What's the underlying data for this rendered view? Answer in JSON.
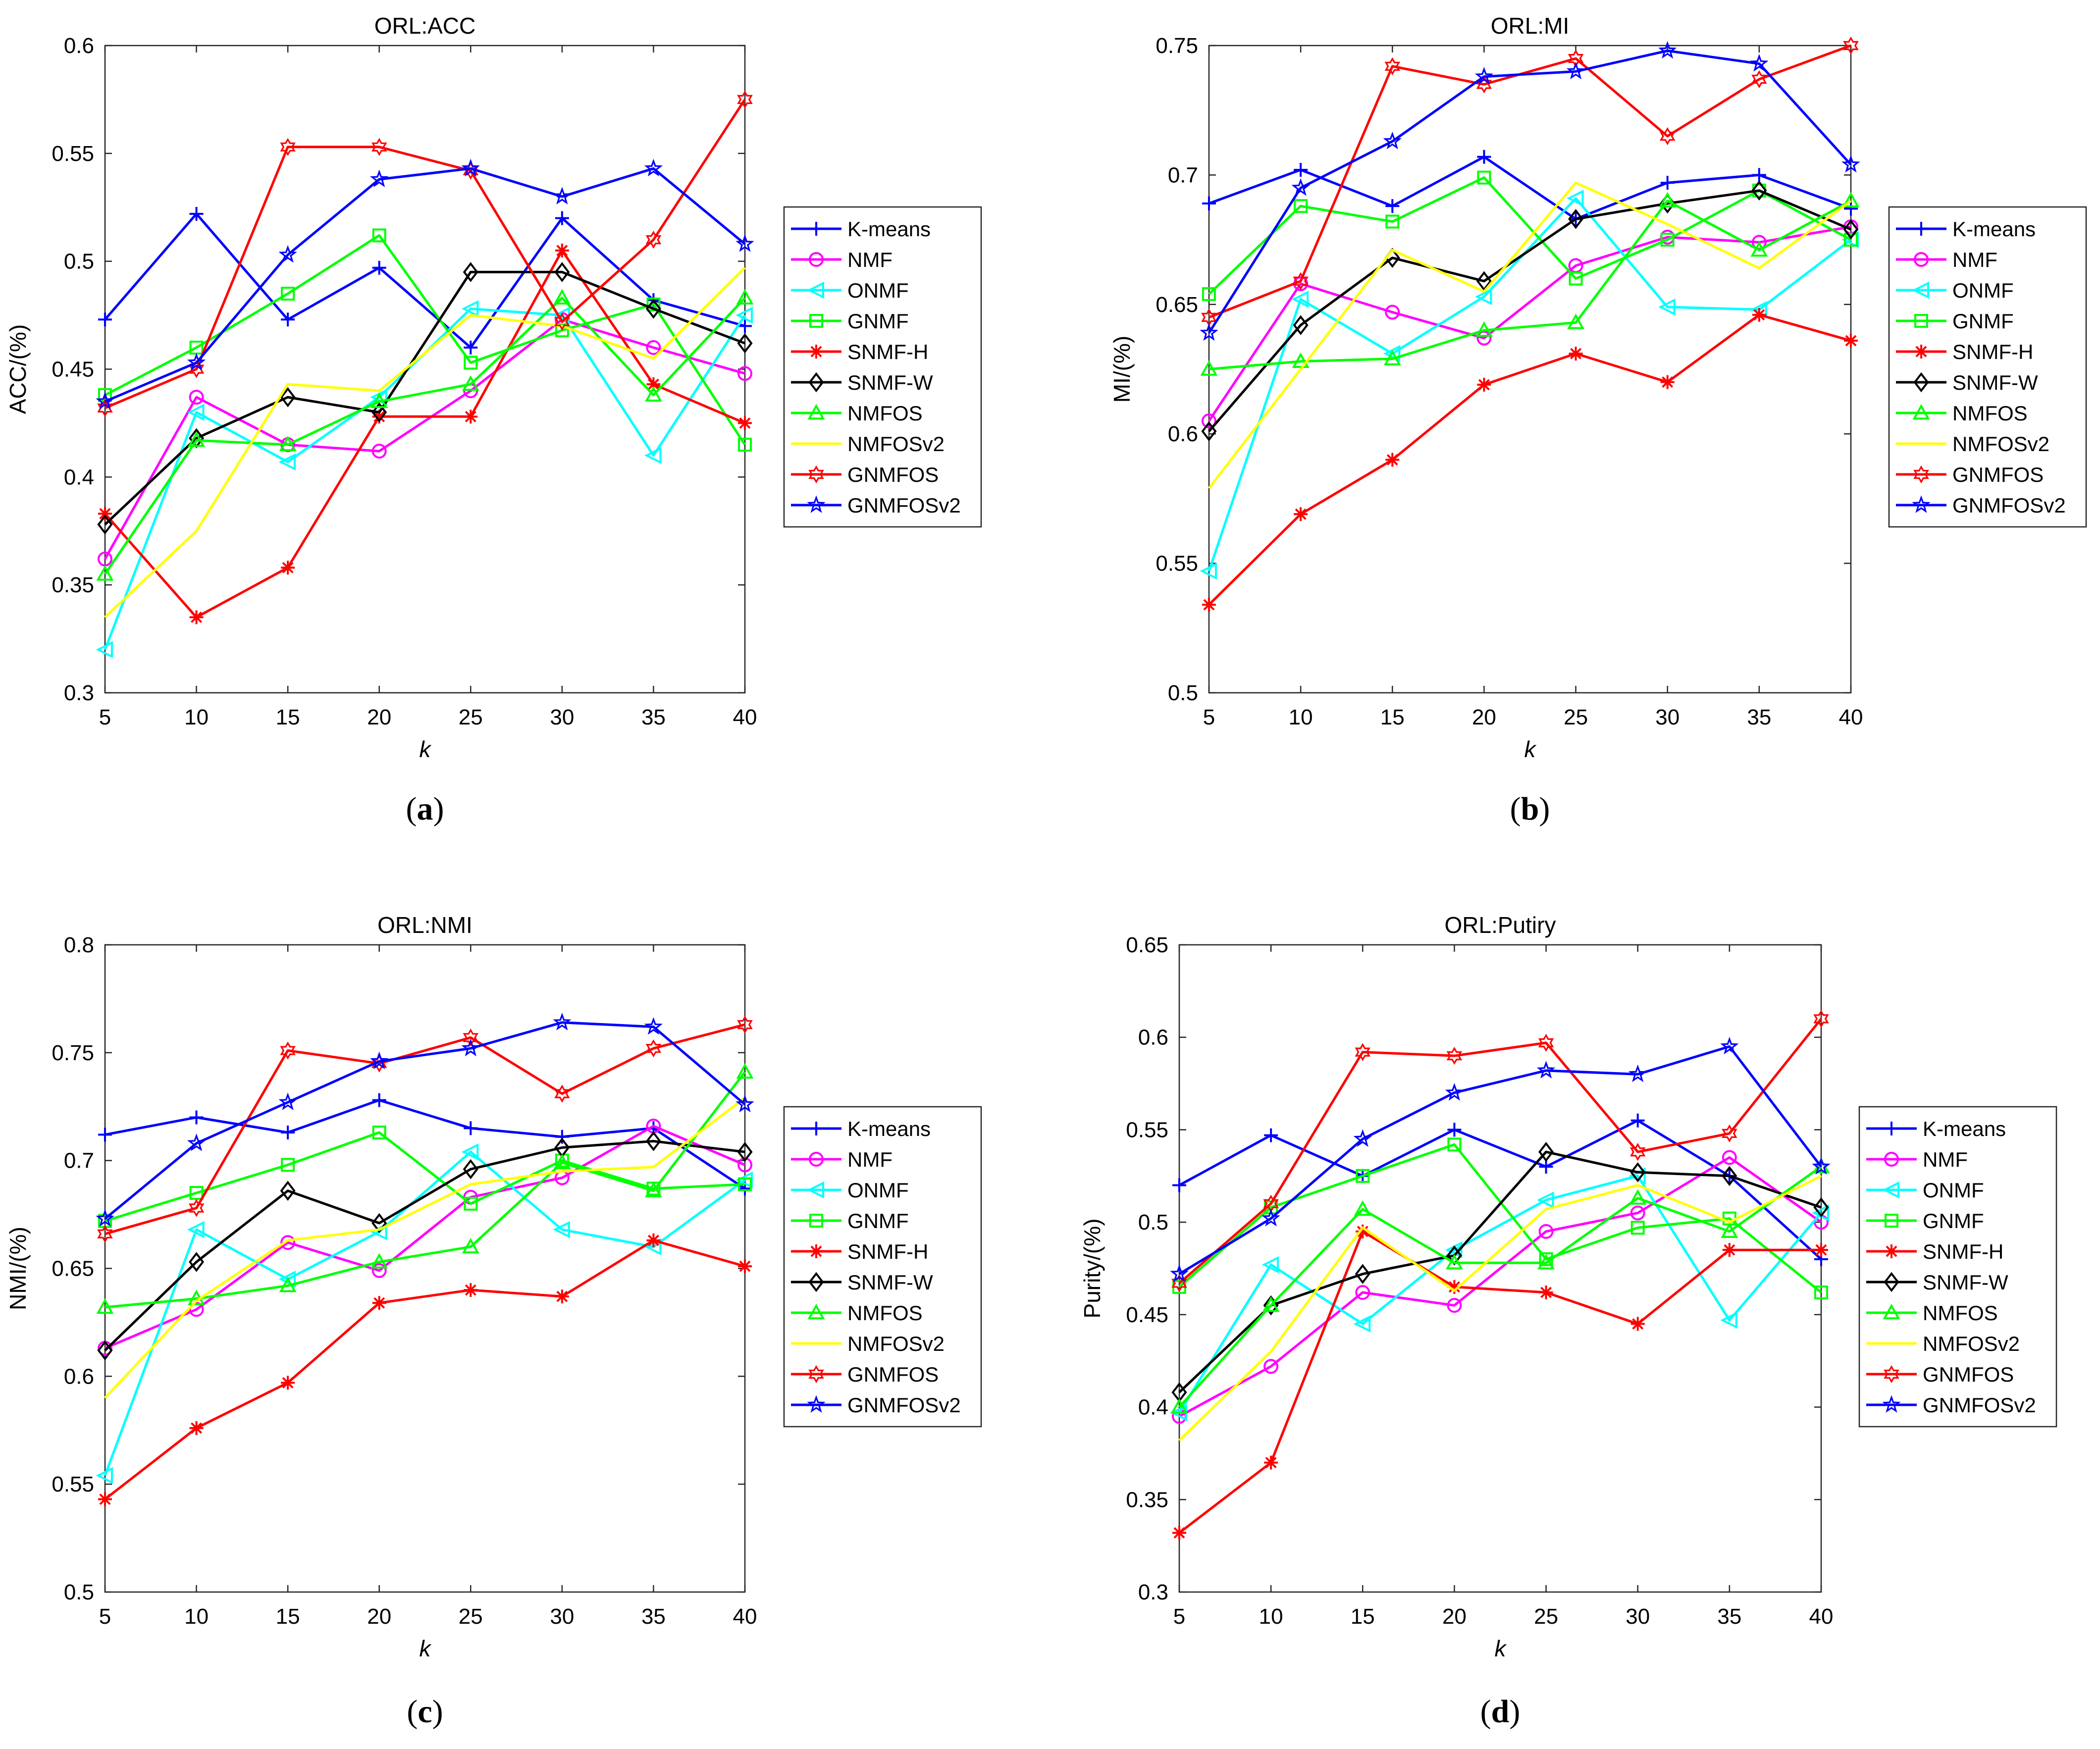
{
  "series_styles": [
    {
      "name": "K-means",
      "color": "#0000FF",
      "marker": "plus"
    },
    {
      "name": "NMF",
      "color": "#FF00FF",
      "marker": "circle"
    },
    {
      "name": "ONMF",
      "color": "#00FFFF",
      "marker": "triangle-left"
    },
    {
      "name": "GNMF",
      "color": "#00FF00",
      "marker": "square"
    },
    {
      "name": "SNMF-H",
      "color": "#FF0000",
      "marker": "asterisk"
    },
    {
      "name": "SNMF-W",
      "color": "#000000",
      "marker": "diamond"
    },
    {
      "name": "NMFOS",
      "color": "#00FF00",
      "marker": "triangle-up"
    },
    {
      "name": "NMFOSv2",
      "color": "#FFFF00",
      "marker": "none"
    },
    {
      "name": "GNMFOS",
      "color": "#FF0000",
      "marker": "hexagram"
    },
    {
      "name": "GNMFOSv2",
      "color": "#0000FF",
      "marker": "pentagram"
    }
  ],
  "chart_data": [
    {
      "type": "line",
      "panel_label": "(a)",
      "title": "ORL:ACC",
      "xlabel": "k",
      "ylabel": "ACC/(%)",
      "x": [
        5,
        10,
        15,
        20,
        25,
        30,
        35,
        40
      ],
      "xticks": [
        "5",
        "10",
        "15",
        "20",
        "25",
        "30",
        "35",
        "40"
      ],
      "ylim": [
        0.3,
        0.6
      ],
      "yticks": [
        "0.3",
        "0.35",
        "0.4",
        "0.45",
        "0.5",
        "0.55",
        "0.6"
      ],
      "legend_position": "right",
      "series": [
        {
          "name": "K-means",
          "values": [
            0.473,
            0.522,
            0.473,
            0.497,
            0.46,
            0.52,
            0.482,
            0.47
          ]
        },
        {
          "name": "NMF",
          "values": [
            0.362,
            0.437,
            0.415,
            0.412,
            0.44,
            0.473,
            0.46,
            0.448
          ]
        },
        {
          "name": "ONMF",
          "values": [
            0.32,
            0.43,
            0.407,
            0.437,
            0.478,
            0.475,
            0.41,
            0.475
          ]
        },
        {
          "name": "GNMF",
          "values": [
            0.438,
            0.46,
            0.485,
            0.512,
            0.453,
            0.468,
            0.48,
            0.415
          ]
        },
        {
          "name": "SNMF-H",
          "values": [
            0.383,
            0.335,
            0.358,
            0.428,
            0.428,
            0.505,
            0.443,
            0.425
          ]
        },
        {
          "name": "SNMF-W",
          "values": [
            0.378,
            0.418,
            0.437,
            0.43,
            0.495,
            0.495,
            0.478,
            0.462
          ]
        },
        {
          "name": "NMFOS",
          "values": [
            0.355,
            0.417,
            0.415,
            0.435,
            0.443,
            0.483,
            0.438,
            0.483
          ]
        },
        {
          "name": "NMFOSv2",
          "values": [
            0.335,
            0.375,
            0.443,
            0.44,
            0.475,
            0.47,
            0.455,
            0.497
          ]
        },
        {
          "name": "GNMFOS",
          "values": [
            0.432,
            0.45,
            0.553,
            0.553,
            0.542,
            0.472,
            0.51,
            0.575
          ]
        },
        {
          "name": "GNMFOSv2",
          "values": [
            0.435,
            0.453,
            0.503,
            0.538,
            0.543,
            0.53,
            0.543,
            0.508
          ]
        }
      ]
    },
    {
      "type": "line",
      "panel_label": "(b)",
      "title": "ORL:MI",
      "xlabel": "k",
      "ylabel": "MI/(%)",
      "x": [
        5,
        10,
        15,
        20,
        25,
        30,
        35,
        40
      ],
      "xticks": [
        "5",
        "10",
        "15",
        "20",
        "25",
        "30",
        "35",
        "40"
      ],
      "ylim": [
        0.5,
        0.75
      ],
      "yticks": [
        "0.5",
        "0.55",
        "0.6",
        "0.65",
        "0.7",
        "0.75"
      ],
      "legend_position": "right",
      "series": [
        {
          "name": "K-means",
          "values": [
            0.689,
            0.702,
            0.688,
            0.707,
            0.683,
            0.697,
            0.7,
            0.687
          ]
        },
        {
          "name": "NMF",
          "values": [
            0.605,
            0.658,
            0.647,
            0.637,
            0.665,
            0.676,
            0.674,
            0.68
          ]
        },
        {
          "name": "ONMF",
          "values": [
            0.547,
            0.652,
            0.631,
            0.653,
            0.691,
            0.649,
            0.648,
            0.675
          ]
        },
        {
          "name": "GNMF",
          "values": [
            0.654,
            0.688,
            0.682,
            0.699,
            0.66,
            0.675,
            0.694,
            0.675
          ]
        },
        {
          "name": "SNMF-H",
          "values": [
            0.534,
            0.569,
            0.59,
            0.619,
            0.631,
            0.62,
            0.646,
            0.636
          ]
        },
        {
          "name": "SNMF-W",
          "values": [
            0.601,
            0.642,
            0.668,
            0.659,
            0.683,
            0.689,
            0.694,
            0.679
          ]
        },
        {
          "name": "NMFOS",
          "values": [
            0.625,
            0.628,
            0.629,
            0.64,
            0.643,
            0.69,
            0.671,
            0.69
          ]
        },
        {
          "name": "NMFOSv2",
          "values": [
            0.579,
            0.625,
            0.671,
            0.655,
            0.697,
            0.681,
            0.664,
            0.69
          ]
        },
        {
          "name": "GNMFOS",
          "values": [
            0.645,
            0.659,
            0.742,
            0.735,
            0.745,
            0.715,
            0.737,
            0.75
          ]
        },
        {
          "name": "GNMFOSv2",
          "values": [
            0.639,
            0.695,
            0.713,
            0.738,
            0.74,
            0.748,
            0.743,
            0.704
          ]
        }
      ]
    },
    {
      "type": "line",
      "panel_label": "(c)",
      "title": "ORL:NMI",
      "xlabel": "k",
      "ylabel": "NMI/(%)",
      "x": [
        5,
        10,
        15,
        20,
        25,
        30,
        35,
        40
      ],
      "xticks": [
        "5",
        "10",
        "15",
        "20",
        "25",
        "30",
        "35",
        "40"
      ],
      "ylim": [
        0.5,
        0.8
      ],
      "yticks": [
        "0.5",
        "0.55",
        "0.6",
        "0.65",
        "0.7",
        "0.75",
        "0.8"
      ],
      "legend_position": "right",
      "series": [
        {
          "name": "K-means",
          "values": [
            0.712,
            0.72,
            0.713,
            0.728,
            0.715,
            0.711,
            0.715,
            0.687
          ]
        },
        {
          "name": "NMF",
          "values": [
            0.613,
            0.631,
            0.662,
            0.649,
            0.683,
            0.692,
            0.716,
            0.698
          ]
        },
        {
          "name": "ONMF",
          "values": [
            0.554,
            0.668,
            0.645,
            0.667,
            0.704,
            0.668,
            0.66,
            0.691
          ]
        },
        {
          "name": "GNMF",
          "values": [
            0.672,
            0.685,
            0.698,
            0.713,
            0.68,
            0.7,
            0.687,
            0.689
          ]
        },
        {
          "name": "SNMF-H",
          "values": [
            0.543,
            0.576,
            0.597,
            0.634,
            0.64,
            0.637,
            0.663,
            0.651
          ]
        },
        {
          "name": "SNMF-W",
          "values": [
            0.612,
            0.653,
            0.686,
            0.671,
            0.696,
            0.706,
            0.709,
            0.704
          ]
        },
        {
          "name": "NMFOS",
          "values": [
            0.632,
            0.636,
            0.642,
            0.653,
            0.66,
            0.699,
            0.686,
            0.741
          ]
        },
        {
          "name": "NMFOSv2",
          "values": [
            0.59,
            0.635,
            0.663,
            0.668,
            0.689,
            0.695,
            0.697,
            0.729
          ]
        },
        {
          "name": "GNMFOS",
          "values": [
            0.666,
            0.678,
            0.751,
            0.745,
            0.757,
            0.731,
            0.752,
            0.763
          ]
        },
        {
          "name": "GNMFOSv2",
          "values": [
            0.673,
            0.708,
            0.727,
            0.746,
            0.752,
            0.764,
            0.762,
            0.726
          ]
        }
      ]
    },
    {
      "type": "line",
      "panel_label": "(d)",
      "title": "ORL:Putiry",
      "xlabel": "k",
      "ylabel": "Purity/(%)",
      "x": [
        5,
        10,
        15,
        20,
        25,
        30,
        35,
        40
      ],
      "xticks": [
        "5",
        "10",
        "15",
        "20",
        "25",
        "30",
        "35",
        "40"
      ],
      "ylim": [
        0.3,
        0.65
      ],
      "yticks": [
        "0.3",
        "0.35",
        "0.4",
        "0.45",
        "0.5",
        "0.55",
        "0.6",
        "0.65"
      ],
      "legend_position": "right",
      "series": [
        {
          "name": "K-means",
          "values": [
            0.52,
            0.547,
            0.525,
            0.55,
            0.53,
            0.555,
            0.525,
            0.48
          ]
        },
        {
          "name": "NMF",
          "values": [
            0.395,
            0.422,
            0.462,
            0.455,
            0.495,
            0.505,
            0.535,
            0.5
          ]
        },
        {
          "name": "ONMF",
          "values": [
            0.397,
            0.477,
            0.445,
            0.485,
            0.512,
            0.525,
            0.447,
            0.505
          ]
        },
        {
          "name": "GNMF",
          "values": [
            0.465,
            0.508,
            0.525,
            0.542,
            0.48,
            0.497,
            0.502,
            0.462
          ]
        },
        {
          "name": "SNMF-H",
          "values": [
            0.332,
            0.37,
            0.495,
            0.465,
            0.462,
            0.445,
            0.485,
            0.485
          ]
        },
        {
          "name": "SNMF-W",
          "values": [
            0.408,
            0.455,
            0.472,
            0.482,
            0.538,
            0.527,
            0.525,
            0.508
          ]
        },
        {
          "name": "NMFOS",
          "values": [
            0.4,
            0.455,
            0.507,
            0.478,
            0.478,
            0.513,
            0.495,
            0.53
          ]
        },
        {
          "name": "NMFOSv2",
          "values": [
            0.382,
            0.43,
            0.497,
            0.463,
            0.507,
            0.52,
            0.5,
            0.525
          ]
        },
        {
          "name": "GNMFOS",
          "values": [
            0.467,
            0.51,
            0.592,
            0.59,
            0.597,
            0.538,
            0.548,
            0.61
          ]
        },
        {
          "name": "GNMFOSv2",
          "values": [
            0.472,
            0.502,
            0.545,
            0.57,
            0.582,
            0.58,
            0.595,
            0.53
          ]
        }
      ]
    }
  ]
}
